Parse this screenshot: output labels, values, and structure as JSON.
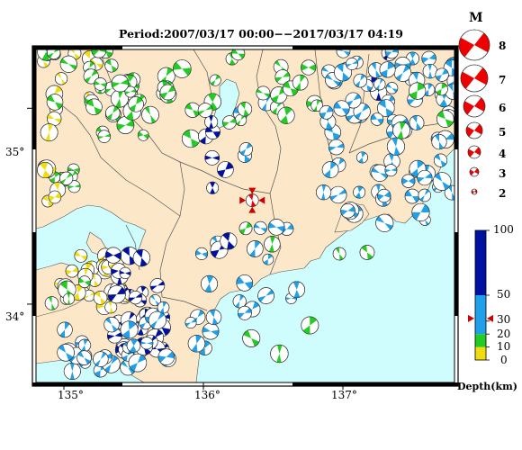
{
  "title": "Period:2007/03/17 00:00−−2017/03/17 04:19",
  "map": {
    "lon_range": [
      134.8,
      137.8
    ],
    "lat_range": [
      33.6,
      35.3
    ],
    "x_ticks": [
      {
        "value": 135,
        "label": "135°"
      },
      {
        "value": 136,
        "label": "136°"
      },
      {
        "value": 137,
        "label": "137°"
      }
    ],
    "y_ticks": [
      {
        "value": 35,
        "label": "35°"
      },
      {
        "value": 34,
        "label": "34°"
      }
    ],
    "colors": {
      "land": "#fce8c8",
      "sea": "#cffcfc",
      "border": "#555555",
      "frame": "#000000"
    }
  },
  "magnitude_legend": {
    "title": "M",
    "items": [
      {
        "label": "8"
      },
      {
        "label": "7"
      },
      {
        "label": "6"
      },
      {
        "label": "5"
      },
      {
        "label": "4"
      },
      {
        "label": "3"
      },
      {
        "label": "2"
      }
    ]
  },
  "depth_legend": {
    "title": "Depth(km)",
    "ticks": [
      "100",
      "50",
      "30",
      "20",
      "10",
      "0"
    ],
    "segments": [
      {
        "from": 0,
        "to": 10,
        "color": "#f0dc10"
      },
      {
        "from": 10,
        "to": 20,
        "color": "#22cc22"
      },
      {
        "from": 20,
        "to": 50,
        "color": "#1fa0e8"
      },
      {
        "from": 50,
        "to": 100,
        "color": "#0010a0"
      }
    ],
    "current_depth": 32
  },
  "main_event": {
    "lon": 136.35,
    "lat": 34.53,
    "depth": 32,
    "color": "#ee0000"
  },
  "clusters": [
    {
      "depth": 8,
      "lon": [
        134.85,
        135.3
      ],
      "lat": [
        34.85,
        35.3
      ],
      "count": 10
    },
    {
      "depth": 15,
      "lon": [
        134.85,
        135.95
      ],
      "lat": [
        34.8,
        35.3
      ],
      "count": 34
    },
    {
      "depth": 15,
      "lon": [
        135.25,
        135.55
      ],
      "lat": [
        34.95,
        35.15
      ],
      "count": 16
    },
    {
      "depth": 15,
      "lon": [
        134.85,
        135.1
      ],
      "lat": [
        34.55,
        34.75
      ],
      "count": 6
    },
    {
      "depth": 5,
      "lon": [
        134.85,
        135.05
      ],
      "lat": [
        34.5,
        34.7
      ],
      "count": 6
    },
    {
      "depth": 5,
      "lon": [
        134.95,
        135.45
      ],
      "lat": [
        33.95,
        34.25
      ],
      "count": 30
    },
    {
      "depth": 15,
      "lon": [
        134.9,
        135.15
      ],
      "lat": [
        34.0,
        34.2
      ],
      "count": 5
    },
    {
      "depth": 70,
      "lon": [
        135.35,
        135.75
      ],
      "lat": [
        33.75,
        34.25
      ],
      "count": 36
    },
    {
      "depth": 35,
      "lon": [
        134.85,
        135.55
      ],
      "lat": [
        33.65,
        33.9
      ],
      "count": 22
    },
    {
      "depth": 35,
      "lon": [
        135.5,
        136.1
      ],
      "lat": [
        33.65,
        34.05
      ],
      "count": 14
    },
    {
      "depth": 35,
      "lon": [
        135.95,
        136.8
      ],
      "lat": [
        33.9,
        34.4
      ],
      "count": 16
    },
    {
      "depth": 15,
      "lon": [
        136.0,
        137.7
      ],
      "lat": [
        33.65,
        34.4
      ],
      "count": 7
    },
    {
      "depth": 70,
      "lon": [
        136.0,
        136.2
      ],
      "lat": [
        34.25,
        34.75
      ],
      "count": 5
    },
    {
      "depth": 75,
      "lon": [
        137.1,
        137.5
      ],
      "lat": [
        35.05,
        35.3
      ],
      "count": 4
    },
    {
      "depth": 70,
      "lon": [
        135.95,
        136.35
      ],
      "lat": [
        34.8,
        34.95
      ],
      "count": 3
    },
    {
      "depth": 35,
      "lon": [
        136.25,
        136.6
      ],
      "lat": [
        34.75,
        35.05
      ],
      "count": 4
    },
    {
      "depth": 15,
      "lon": [
        135.9,
        136.6
      ],
      "lat": [
        34.9,
        35.3
      ],
      "count": 12
    },
    {
      "depth": 15,
      "lon": [
        136.55,
        137.0
      ],
      "lat": [
        34.95,
        35.25
      ],
      "count": 8
    },
    {
      "depth": 35,
      "lon": [
        136.85,
        137.8
      ],
      "lat": [
        34.55,
        35.3
      ],
      "count": 75
    },
    {
      "depth": 35,
      "lon": [
        137.25,
        137.6
      ],
      "lat": [
        34.4,
        34.75
      ],
      "count": 8
    },
    {
      "depth": 35,
      "lon": [
        136.8,
        137.3
      ],
      "lat": [
        34.4,
        34.6
      ],
      "count": 4
    },
    {
      "depth": 15,
      "lon": [
        137.4,
        137.75
      ],
      "lat": [
        34.75,
        35.1
      ],
      "count": 4
    }
  ]
}
